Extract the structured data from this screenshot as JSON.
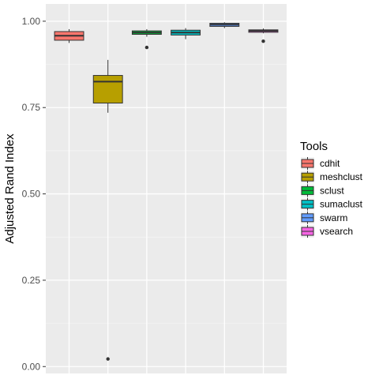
{
  "chart_data": {
    "type": "boxplot",
    "title": "",
    "xlabel": "",
    "ylabel": "Adjusted Rand Index",
    "ylim": [
      -0.02,
      1.05
    ],
    "yticks": [
      0.0,
      0.25,
      0.5,
      0.75,
      1.0
    ],
    "ytick_labels": [
      "0.00",
      "0.25",
      "0.50",
      "0.75",
      "1.00"
    ],
    "grid": true,
    "legend": {
      "title": "Tools",
      "placement": "right"
    },
    "series": [
      {
        "name": "cdhit",
        "color": "#F8766D",
        "min": 0.937,
        "q1": 0.945,
        "median": 0.958,
        "q3": 0.97,
        "max": 0.977,
        "outliers": []
      },
      {
        "name": "meshclust",
        "color": "#B79F00",
        "min": 0.735,
        "q1": 0.763,
        "median": 0.825,
        "q3": 0.843,
        "max": 0.888,
        "outliers": [
          0.022
        ]
      },
      {
        "name": "sclust",
        "color": "#00BA38",
        "min": 0.955,
        "q1": 0.962,
        "median": 0.967,
        "q3": 0.972,
        "max": 0.977,
        "outliers": [
          0.924
        ]
      },
      {
        "name": "sumaclust",
        "color": "#00BFC4",
        "min": 0.948,
        "q1": 0.96,
        "median": 0.967,
        "q3": 0.974,
        "max": 0.98,
        "outliers": []
      },
      {
        "name": "swarm",
        "color": "#619CFF",
        "min": 0.98,
        "q1": 0.985,
        "median": 0.99,
        "q3": 0.994,
        "max": 0.997,
        "outliers": []
      },
      {
        "name": "vsearch",
        "color": "#F564E3",
        "min": 0.965,
        "q1": 0.968,
        "median": 0.972,
        "q3": 0.975,
        "max": 0.979,
        "outliers": [
          0.942
        ]
      }
    ]
  }
}
